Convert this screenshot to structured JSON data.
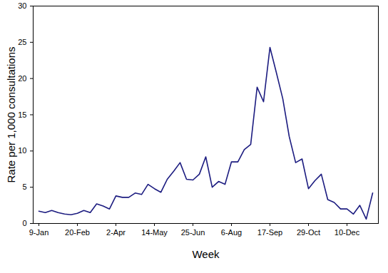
{
  "chart_data": {
    "type": "line",
    "x_label": "Week",
    "y_label": "Rate per 1,000 consultations",
    "categories": [
      "9-Jan",
      null,
      null,
      null,
      null,
      null,
      "20-Feb",
      null,
      null,
      null,
      null,
      null,
      "2-Apr",
      null,
      null,
      null,
      null,
      null,
      "14-May",
      null,
      null,
      null,
      null,
      null,
      "25-Jun",
      null,
      null,
      null,
      null,
      null,
      "6-Aug",
      null,
      null,
      null,
      null,
      null,
      "17-Sep",
      null,
      null,
      null,
      null,
      null,
      "29-Oct",
      null,
      null,
      null,
      null,
      null,
      "10-Dec",
      null,
      null,
      null,
      null
    ],
    "values": [
      1.7,
      1.5,
      1.8,
      1.5,
      1.3,
      1.2,
      1.4,
      1.8,
      1.5,
      2.7,
      2.4,
      2.0,
      3.8,
      3.6,
      3.6,
      4.2,
      4.0,
      5.4,
      4.8,
      4.3,
      6.1,
      7.2,
      8.4,
      6.1,
      6.0,
      6.8,
      9.2,
      5.0,
      5.8,
      5.4,
      8.5,
      8.5,
      10.2,
      10.9,
      18.8,
      16.8,
      24.3,
      20.8,
      17.2,
      12.0,
      8.4,
      8.9,
      4.8,
      5.9,
      6.8,
      3.3,
      2.9,
      2.0,
      2.0,
      1.3,
      2.5,
      0.6,
      4.2
    ],
    "color": "#1c1c80",
    "ylim": [
      0,
      30
    ],
    "yticks": [
      0,
      5,
      10,
      15,
      20,
      25,
      30
    ],
    "grid": false
  }
}
